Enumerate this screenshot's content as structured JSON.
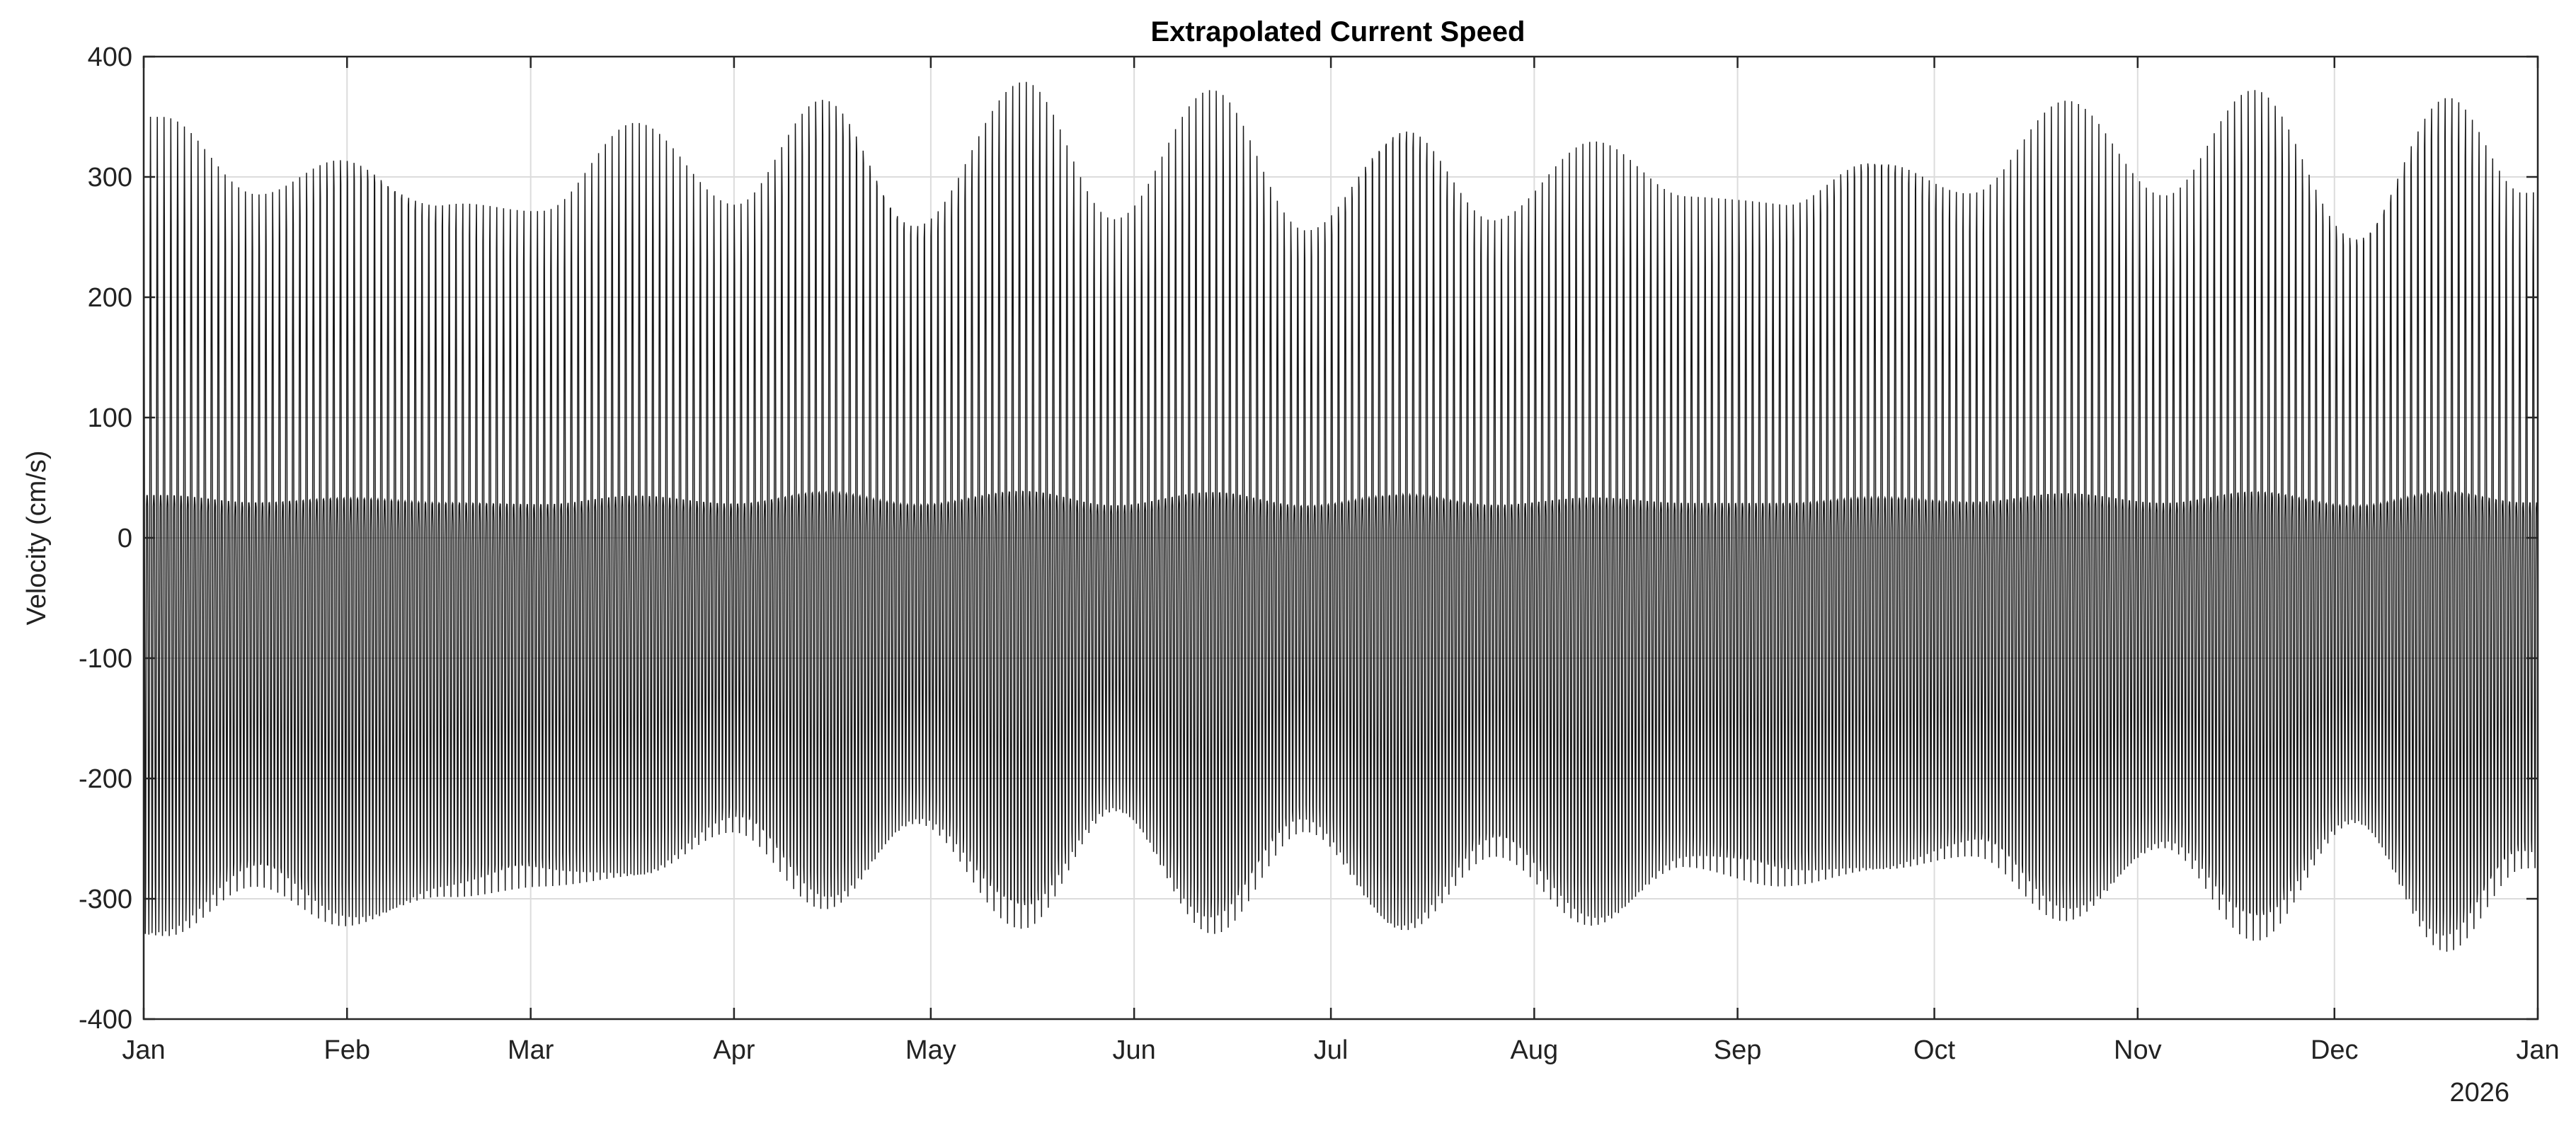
{
  "chart_data": {
    "type": "line",
    "title": "Extrapolated Current Speed",
    "xlabel": "",
    "ylabel": "Velocity (cm/s)",
    "ylim": [
      -400,
      400
    ],
    "xlim": [
      "2025-01-01",
      "2026-01-01"
    ],
    "grid": true,
    "legend": "none",
    "year_label": "2026",
    "x_tick_labels": [
      "Jan",
      "Feb",
      "Mar",
      "Apr",
      "May",
      "Jun",
      "Jul",
      "Aug",
      "Sep",
      "Oct",
      "Nov",
      "Dec",
      "Jan"
    ],
    "x_tick_dates": [
      "2025-01-01",
      "2025-02-01",
      "2025-03-01",
      "2025-04-01",
      "2025-05-01",
      "2025-06-01",
      "2025-07-01",
      "2025-08-01",
      "2025-09-01",
      "2025-10-01",
      "2025-11-01",
      "2025-12-01",
      "2026-01-01"
    ],
    "y_ticks": [
      -400,
      -300,
      -200,
      -100,
      0,
      100,
      200,
      300,
      400
    ],
    "y_tick_labels": [
      "-400",
      "-300",
      "-200",
      "-100",
      "0",
      "100",
      "200",
      "300",
      "400"
    ],
    "series": [
      {
        "color": "#000000",
        "envelope_dates": [
          "2025-01-04",
          "2025-01-18",
          "2025-02-01",
          "2025-02-16",
          "2025-03-03",
          "2025-03-17",
          "2025-04-01",
          "2025-04-15",
          "2025-04-29",
          "2025-05-15",
          "2025-05-29",
          "2025-06-13",
          "2025-06-27",
          "2025-07-12",
          "2025-07-26",
          "2025-08-10",
          "2025-08-24",
          "2025-09-08",
          "2025-09-22",
          "2025-10-07",
          "2025-10-21",
          "2025-11-05",
          "2025-11-19",
          "2025-12-04",
          "2025-12-18",
          "2025-12-30"
        ],
        "envelope_max": [
          350,
          290,
          330,
          290,
          275,
          345,
          280,
          380,
          275,
          385,
          265,
          375,
          265,
          360,
          270,
          330,
          285,
          285,
          335,
          295,
          365,
          285,
          380,
          265,
          380,
          290
        ],
        "envelope_min": [
          -335,
          -290,
          -325,
          -300,
          -290,
          -285,
          -245,
          -310,
          -240,
          -325,
          -230,
          -330,
          -245,
          -330,
          -265,
          -325,
          -275,
          -290,
          -280,
          -265,
          -320,
          -260,
          -335,
          -240,
          -345,
          -275
        ]
      }
    ]
  }
}
